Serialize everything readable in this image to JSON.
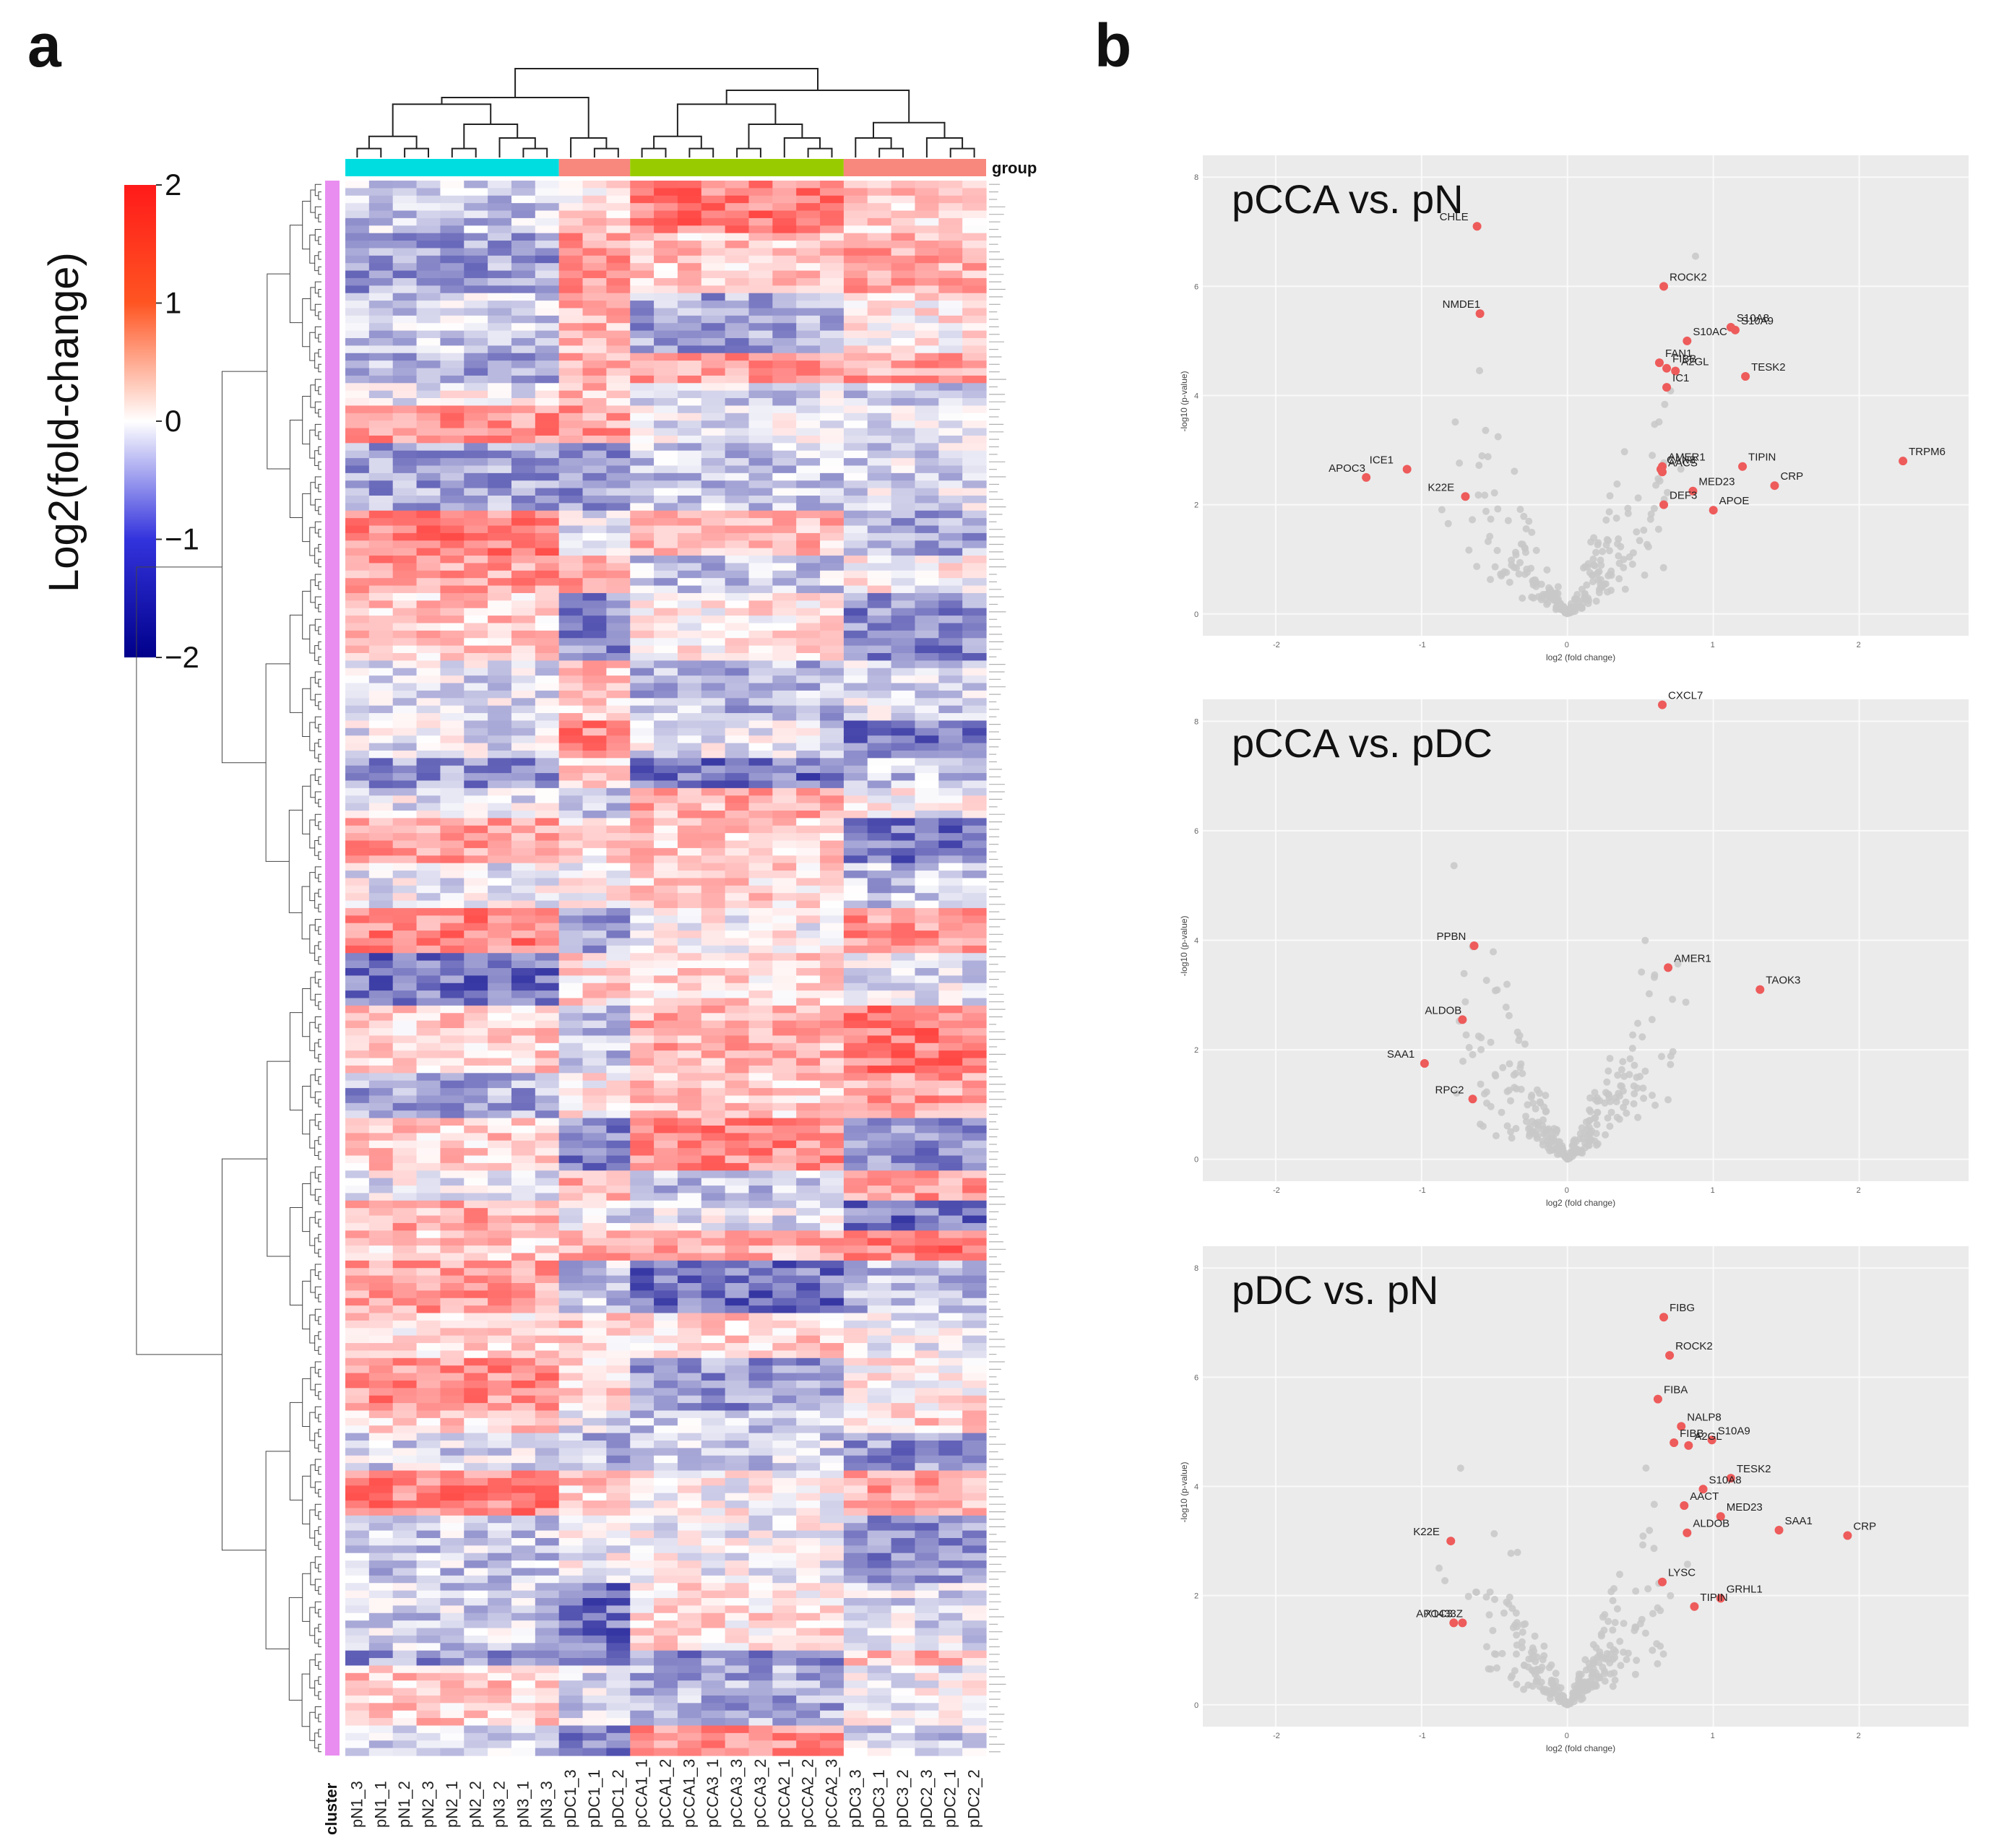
{
  "figure": {
    "panel_a_letter": "a",
    "panel_b_letter": "b"
  },
  "chart_data": [
    {
      "type": "heatmap",
      "title": "",
      "colorbar": {
        "label": "Log2(fold-change)",
        "ticks": [
          "2",
          "1",
          "0",
          "−1",
          "−2"
        ],
        "range": [
          -2,
          2
        ],
        "low_color": "#00008b",
        "mid_color": "#ffffff",
        "high_color": "#ff1a1a"
      },
      "columns": [
        "pN1_3",
        "pN1_1",
        "pN1_2",
        "pN2_3",
        "pN2_1",
        "pN2_2",
        "pN3_2",
        "pN3_1",
        "pN3_3",
        "pDC1_3",
        "pDC1_1",
        "pDC1_2",
        "pCCA1_1",
        "pCCA1_2",
        "pCCA1_3",
        "pCCA3_1",
        "pCCA3_3",
        "pCCA3_2",
        "pCCA2_1",
        "pCCA2_2",
        "pCCA2_3",
        "pDC3_3",
        "pDC3_1",
        "pDC3_2",
        "pDC2_3",
        "pDC2_1",
        "pDC2_2"
      ],
      "group_label": "group",
      "cluster_label": "cluster",
      "groups": [
        {
          "name": "pN",
          "count": 9,
          "color": "#00dde0"
        },
        {
          "name": "pDC1",
          "count": 3,
          "color": "#f8877e"
        },
        {
          "name": "pCCA",
          "count": 9,
          "color": "#99cc00"
        },
        {
          "name": "pDC2/3",
          "count": 6,
          "color": "#f8877e"
        }
      ],
      "cluster_color": "#e98ef0",
      "n_rows": 210
    },
    {
      "type": "scatter",
      "title": "pCCA vs. pN",
      "xlabel": "log2 (fold change)",
      "ylabel": "-log10 (p-value)",
      "xlim": [
        -2.5,
        2.75
      ],
      "ylim": [
        -0.4,
        8.4
      ],
      "xticks": [
        "-2",
        "-1",
        "0",
        "1",
        "2"
      ],
      "yticks": [
        "0",
        "2",
        "4",
        "6",
        "8"
      ],
      "highlight_color": "#ee5b5b",
      "background_color": "#ebebeb",
      "labeled_points": [
        {
          "label": "CHLE",
          "x": -0.62,
          "y": 7.1
        },
        {
          "label": "NMDE1",
          "x": -0.6,
          "y": 5.5
        },
        {
          "label": "ROCK2",
          "x": 0.66,
          "y": 6.0
        },
        {
          "label": "S10A9",
          "x": 1.15,
          "y": 5.2
        },
        {
          "label": "S10A8",
          "x": 1.12,
          "y": 5.25
        },
        {
          "label": "S10AC",
          "x": 0.82,
          "y": 5.0
        },
        {
          "label": "FAN1",
          "x": 0.63,
          "y": 4.6
        },
        {
          "label": "TESK2",
          "x": 1.22,
          "y": 4.35
        },
        {
          "label": "A2GL",
          "x": 0.74,
          "y": 4.45
        },
        {
          "label": "FIBB",
          "x": 0.68,
          "y": 4.5
        },
        {
          "label": "IC1",
          "x": 0.68,
          "y": 4.15
        },
        {
          "label": "AMER1",
          "x": 0.65,
          "y": 2.7
        },
        {
          "label": "TIPIN",
          "x": 1.2,
          "y": 2.7
        },
        {
          "label": "TRPM6",
          "x": 2.3,
          "y": 2.8
        },
        {
          "label": "CAN8",
          "x": 0.64,
          "y": 2.65
        },
        {
          "label": "AACS",
          "x": 0.65,
          "y": 2.6
        },
        {
          "label": "CRP",
          "x": 1.42,
          "y": 2.35
        },
        {
          "label": "MED23",
          "x": 0.86,
          "y": 2.25
        },
        {
          "label": "APOE",
          "x": 1.0,
          "y": 1.9
        },
        {
          "label": "DEF3",
          "x": 0.66,
          "y": 2.0
        },
        {
          "label": "ICE1",
          "x": -1.1,
          "y": 2.65
        },
        {
          "label": "APOC3",
          "x": -1.38,
          "y": 2.5
        },
        {
          "label": "K22E",
          "x": -0.7,
          "y": 2.15
        }
      ]
    },
    {
      "type": "scatter",
      "title": "pCCA vs. pDC",
      "xlabel": "log2 (fold change)",
      "ylabel": "-log10 (p-value)",
      "xlim": [
        -2.5,
        2.75
      ],
      "ylim": [
        -0.4,
        8.4
      ],
      "xticks": [
        "-2",
        "-1",
        "0",
        "1",
        "2"
      ],
      "yticks": [
        "0",
        "2",
        "4",
        "6",
        "8"
      ],
      "highlight_color": "#ee5b5b",
      "background_color": "#ebebeb",
      "labeled_points": [
        {
          "label": "CXCL7",
          "x": 0.65,
          "y": 8.3
        },
        {
          "label": "PPBN",
          "x": -0.64,
          "y": 3.9
        },
        {
          "label": "AMER1",
          "x": 0.69,
          "y": 3.5
        },
        {
          "label": "TAOK3",
          "x": 1.32,
          "y": 3.1
        },
        {
          "label": "ALDOB",
          "x": -0.72,
          "y": 2.55
        },
        {
          "label": "SAA1",
          "x": -0.98,
          "y": 1.75
        },
        {
          "label": "RPC2",
          "x": -0.65,
          "y": 1.1
        }
      ]
    },
    {
      "type": "scatter",
      "title": "pDC vs. pN",
      "xlabel": "log2 (fold change)",
      "ylabel": "-log10 (p-value)",
      "xlim": [
        -2.5,
        2.75
      ],
      "ylim": [
        -0.4,
        8.4
      ],
      "xticks": [
        "-2",
        "-1",
        "0",
        "1",
        "2"
      ],
      "yticks": [
        "0",
        "2",
        "4",
        "6",
        "8"
      ],
      "highlight_color": "#ee5b5b",
      "background_color": "#ebebeb",
      "labeled_points": [
        {
          "label": "FIBG",
          "x": 0.66,
          "y": 7.1
        },
        {
          "label": "ROCK2",
          "x": 0.7,
          "y": 6.4
        },
        {
          "label": "FIBA",
          "x": 0.62,
          "y": 5.6
        },
        {
          "label": "NALP8",
          "x": 0.78,
          "y": 5.1
        },
        {
          "label": "S10A9",
          "x": 0.99,
          "y": 4.85
        },
        {
          "label": "FIBB",
          "x": 0.73,
          "y": 4.8
        },
        {
          "label": "A2GL",
          "x": 0.83,
          "y": 4.75
        },
        {
          "label": "TESK2",
          "x": 1.12,
          "y": 4.15
        },
        {
          "label": "S10A8",
          "x": 0.93,
          "y": 3.95
        },
        {
          "label": "AACT",
          "x": 0.8,
          "y": 3.65
        },
        {
          "label": "MED23",
          "x": 1.05,
          "y": 3.45
        },
        {
          "label": "CRP",
          "x": 1.92,
          "y": 3.1
        },
        {
          "label": "SAA1",
          "x": 1.45,
          "y": 3.2
        },
        {
          "label": "ALDOB",
          "x": 0.82,
          "y": 3.15
        },
        {
          "label": "LYSC",
          "x": 0.65,
          "y": 2.25
        },
        {
          "label": "GRHL1",
          "x": 1.05,
          "y": 1.95
        },
        {
          "label": "TIPIN",
          "x": 0.87,
          "y": 1.8
        },
        {
          "label": "K22E",
          "x": -0.8,
          "y": 3.0
        },
        {
          "label": "X1433Z",
          "x": -0.72,
          "y": 1.5
        },
        {
          "label": "APOC3",
          "x": -0.78,
          "y": 1.5
        }
      ]
    }
  ]
}
